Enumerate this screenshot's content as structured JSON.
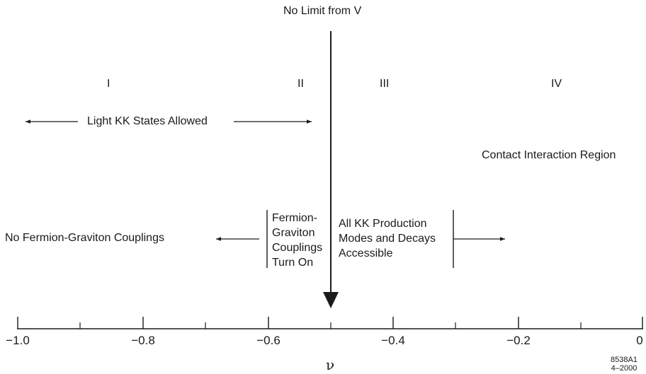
{
  "top_label": "No Limit from V",
  "regions": [
    "I",
    "II",
    "III",
    "IV"
  ],
  "light_kk_label": "Light KK States Allowed",
  "contact_label": "Contact Interaction Region",
  "no_coupling_label": "No Fermion-Graviton Couplings",
  "coupling_turn_on": [
    "Fermion-",
    "Graviton",
    "Couplings",
    "Turn On"
  ],
  "kk_production": [
    "All KK Production",
    "Modes and Decays",
    "Accessible"
  ],
  "axis": {
    "title": "ν",
    "ticks": [
      "−1.0",
      "−0.8",
      "−0.6",
      "−0.4",
      "−0.2",
      "0"
    ]
  },
  "figure_id": [
    "8538A1",
    "4–2000"
  ]
}
